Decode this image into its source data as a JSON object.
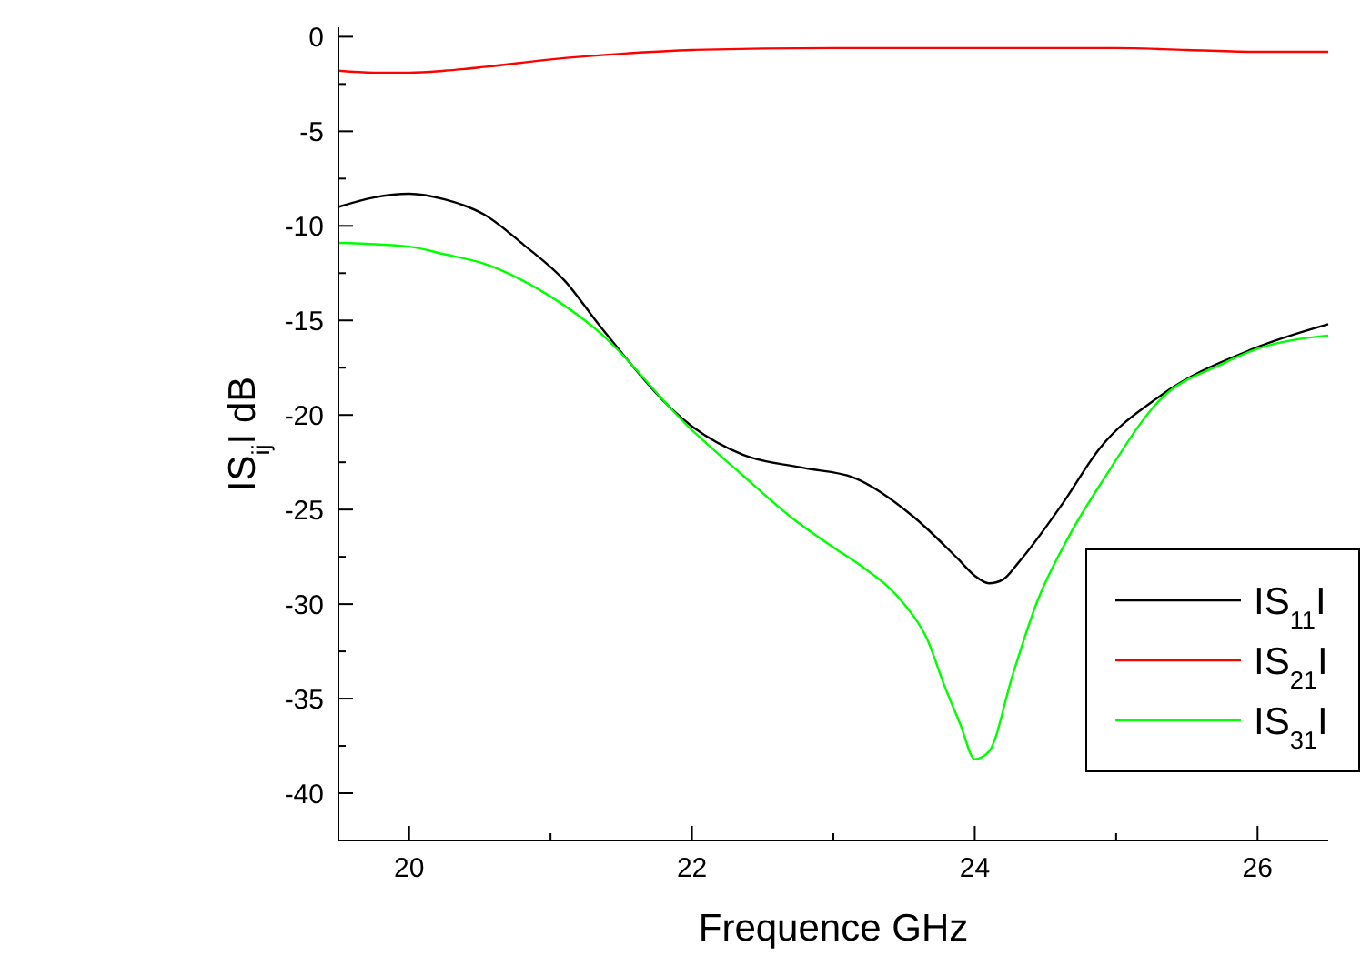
{
  "chart_data": {
    "type": "line",
    "xlabel": "Frequence GHz",
    "ylabel": "IS$_{ij}$I dB",
    "xlim": [
      19.5,
      26.5
    ],
    "xticks": [
      {
        "value": 20,
        "label": "20"
      },
      {
        "value": 21,
        "label": null
      },
      {
        "value": 22,
        "label": "22"
      },
      {
        "value": 23,
        "label": null
      },
      {
        "value": 24,
        "label": "24"
      },
      {
        "value": 25,
        "label": null
      },
      {
        "value": 26,
        "label": "26"
      }
    ],
    "ylim": [
      -42.5,
      0.5
    ],
    "yticks": [
      {
        "value": -42.5,
        "label": null
      },
      -40,
      {
        "value": -37.5,
        "label": null
      },
      -35,
      {
        "value": -32.5,
        "label": null
      },
      -30,
      {
        "value": -27.5,
        "label": null
      },
      -25,
      {
        "value": -22.5,
        "label": null
      },
      -20,
      {
        "value": -17.5,
        "label": null
      },
      -15,
      {
        "value": -12.5,
        "label": null
      },
      -10,
      {
        "value": -7.5,
        "label": null
      },
      -5,
      {
        "value": -2.5,
        "label": null
      },
      0
    ],
    "legend": "bottom right",
    "grid": false,
    "marker": "none",
    "line_style": "solid",
    "series": [
      {
        "name": "IS$_{11}$I",
        "color": "#000000",
        "x": [
          19.5,
          19.75,
          20.0,
          20.25,
          20.53,
          20.81,
          21.1,
          21.36,
          22.0,
          22.36,
          22.79,
          23.14,
          23.57,
          23.88,
          24.0,
          24.1,
          24.2,
          24.31,
          24.62,
          24.88,
          25.31,
          25.97,
          26.5
        ],
        "values": [
          -9.0,
          -8.5,
          -8.3,
          -8.6,
          -9.4,
          -11.0,
          -12.9,
          -15.4,
          -20.6,
          -22.1,
          -22.8,
          -23.3,
          -25.4,
          -27.6,
          -28.5,
          -28.9,
          -28.7,
          -27.8,
          -24.7,
          -21.8,
          -19.0,
          -16.5,
          -15.2
        ]
      },
      {
        "name": "IS$_{21}$I",
        "color": "#ff0000",
        "x": [
          19.5,
          19.75,
          20.0,
          20.25,
          20.53,
          21.0,
          21.5,
          22.0,
          23.0,
          24.0,
          25.0,
          25.5,
          26.0,
          26.5
        ],
        "values": [
          -1.8,
          -1.9,
          -1.9,
          -1.8,
          -1.6,
          -1.2,
          -0.9,
          -0.7,
          -0.6,
          -0.6,
          -0.6,
          -0.7,
          -0.8,
          -0.8
        ]
      },
      {
        "name": "IS$_{31}$I",
        "color": "#00ff00",
        "x": [
          19.5,
          20.0,
          20.25,
          20.53,
          20.97,
          21.31,
          22.0,
          22.36,
          22.7,
          23.0,
          23.2,
          23.49,
          23.66,
          23.79,
          23.9,
          24.0,
          24.1,
          24.27,
          24.44,
          24.66,
          24.92,
          25.31,
          25.75,
          26.0,
          26.5
        ],
        "values": [
          -10.9,
          -11.1,
          -11.5,
          -12.0,
          -13.6,
          -15.4,
          -20.8,
          -23.2,
          -25.4,
          -27.0,
          -28.0,
          -29.9,
          -31.8,
          -34.4,
          -36.4,
          -38.2,
          -37.8,
          -33.7,
          -29.9,
          -26.5,
          -23.3,
          -19.2,
          -17.3,
          -16.5,
          -15.8
        ]
      }
    ]
  }
}
